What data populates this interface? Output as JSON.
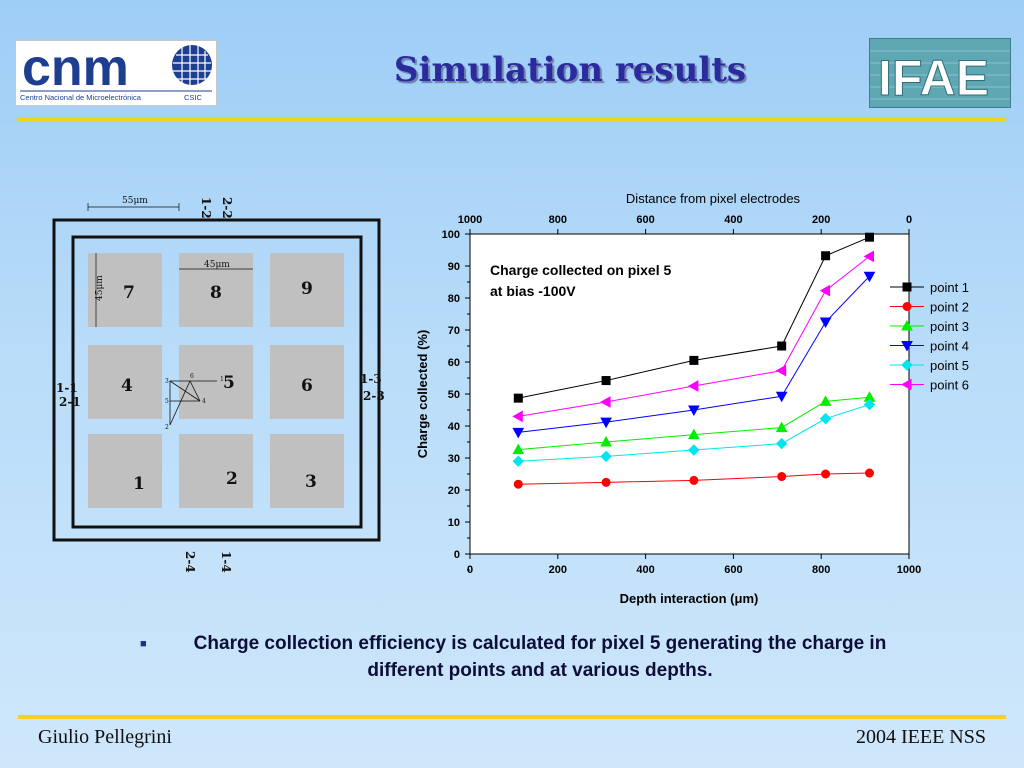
{
  "slide": {
    "title": "Simulation results",
    "bullet_symbol": "■",
    "bullet_text": "Charge collection efficiency is calculated for pixel 5 generating the charge in different points and at various depths.",
    "footer_left": "Giulio Pellegrini",
    "footer_right": "2004 IEEE NSS"
  },
  "logos": {
    "cnm_text": "cnm",
    "cnm_subtitle": "Centro Nacional de Microelectrónica",
    "cnm_csic": "CSIC",
    "ifae_text": "IFAE"
  },
  "diagram": {
    "dim_55": "55μm",
    "dim_45_top": "45μm",
    "dim_45_side": "45μm",
    "labels": {
      "top_a": "1-2",
      "top_b": "2-2",
      "left_a": "1-1",
      "left_b": "2-1",
      "right_a": "1-3",
      "right_b": "2-3",
      "bottom_a": "2-4",
      "bottom_b": "1-4"
    },
    "pixel_numbers": [
      "7",
      "8",
      "9",
      "4",
      "5",
      "6",
      "1",
      "2",
      "3"
    ],
    "inner_points": [
      "1",
      "2",
      "3",
      "4",
      "5",
      "6"
    ]
  },
  "chart_data": {
    "type": "line",
    "annotation": "Charge collected on pixel 5\nat bias -100V",
    "xlabel": "Depth interaction (μm)",
    "ylabel": "Charge  collected (%)",
    "top_xlabel": "Distance from pixel electrodes",
    "xlim": [
      0,
      1000
    ],
    "ylim": [
      0,
      100
    ],
    "x_ticks": [
      0,
      200,
      400,
      600,
      800,
      1000
    ],
    "y_ticks": [
      0,
      10,
      20,
      30,
      40,
      50,
      60,
      70,
      80,
      90,
      100
    ],
    "top_ticks": [
      1000,
      800,
      600,
      400,
      200,
      0
    ],
    "x": [
      110,
      310,
      510,
      710,
      810,
      910
    ],
    "series": [
      {
        "name": "point 1",
        "color": "#000000",
        "marker": "square",
        "values": [
          48.7,
          54.2,
          60.5,
          65.0,
          93.2,
          99.0
        ]
      },
      {
        "name": "point 2",
        "color": "#ff0000",
        "marker": "circle",
        "values": [
          21.8,
          22.4,
          23.0,
          24.2,
          25.0,
          25.3
        ]
      },
      {
        "name": "point 3",
        "color": "#00ee00",
        "marker": "triangle-up",
        "values": [
          32.6,
          35.0,
          37.3,
          39.5,
          47.7,
          49.0
        ]
      },
      {
        "name": "point 4",
        "color": "#0000ff",
        "marker": "triangle-down",
        "values": [
          38.0,
          41.2,
          45.0,
          49.3,
          72.5,
          86.8
        ]
      },
      {
        "name": "point 5",
        "color": "#00e5ee",
        "marker": "diamond",
        "values": [
          29.0,
          30.5,
          32.5,
          34.5,
          42.3,
          46.7
        ]
      },
      {
        "name": "point 6",
        "color": "#ff00ff",
        "marker": "triangle-left",
        "values": [
          43.0,
          47.5,
          52.5,
          57.3,
          82.3,
          93.0
        ]
      }
    ]
  }
}
